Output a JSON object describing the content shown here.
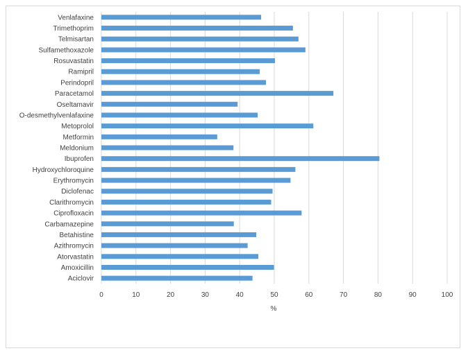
{
  "chart_data": {
    "type": "bar",
    "orientation": "horizontal",
    "categories": [
      "Venlafaxine",
      "Trimethoprim",
      "Telmisartan",
      "Sulfamethoxazole",
      "Rosuvastatin",
      "Ramipril",
      "Perindopril",
      "Paracetamol",
      "Oseltamavir",
      "O-desmethylvenlafaxine",
      "Metoprolol",
      "Metformin",
      "Meldonium",
      "Ibuprofen",
      "Hydroxychloroquine",
      "Erythromycin",
      "Diclofenac",
      "Clarithromycin",
      "Ciprofloxacin",
      "Carbamazepine",
      "Betahistine",
      "Azithromycin",
      "Atorvastatin",
      "Amoxicillin",
      "Aciclovir"
    ],
    "values": [
      46.2,
      55.4,
      57.0,
      59.0,
      50.2,
      45.8,
      47.6,
      67.1,
      39.4,
      45.2,
      61.3,
      33.5,
      38.2,
      80.4,
      56.1,
      54.7,
      49.5,
      49.1,
      57.9,
      38.3,
      44.8,
      42.3,
      45.4,
      49.9,
      43.7
    ],
    "title": "",
    "xlabel": "%",
    "ylabel": "",
    "xlim": [
      0,
      100
    ],
    "x_ticks": [
      "0",
      "10",
      "20",
      "30",
      "40",
      "50",
      "60",
      "70",
      "80",
      "90",
      "100"
    ],
    "grid": true,
    "bar_color": "#5b9bd5",
    "grid_color": "#d9d9d9"
  }
}
